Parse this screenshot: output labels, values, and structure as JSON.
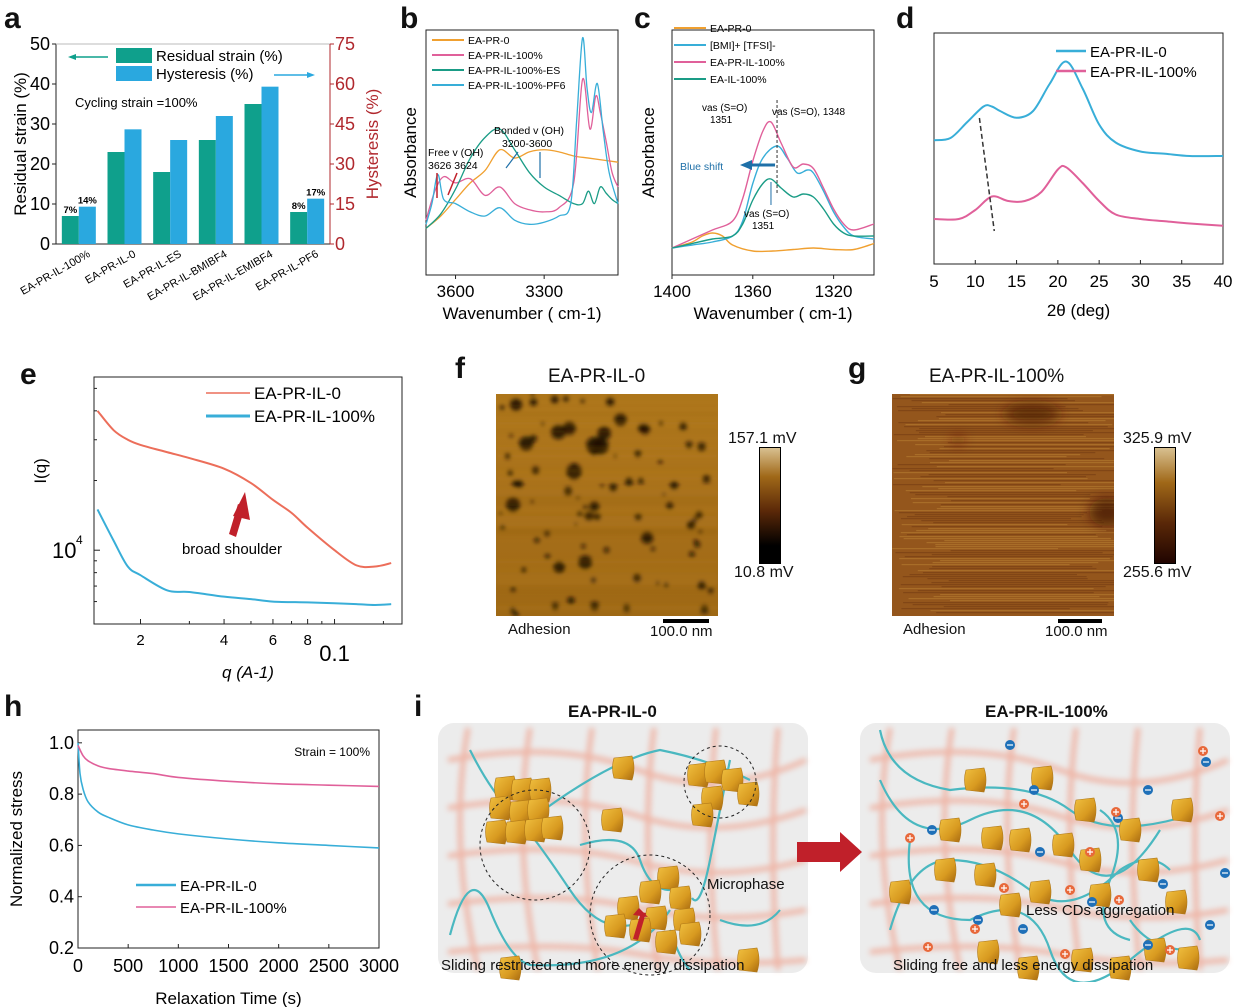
{
  "panels": {
    "a": {
      "label": "a"
    },
    "b": {
      "label": "b"
    },
    "c": {
      "label": "c"
    },
    "d": {
      "label": "d"
    },
    "e": {
      "label": "e"
    },
    "f": {
      "label": "f"
    },
    "g": {
      "label": "g"
    },
    "h": {
      "label": "h"
    },
    "i": {
      "label": "i"
    }
  },
  "colors": {
    "teal": "#0fa08c",
    "blue": "#2aa8df",
    "red_axis": "#b0282e",
    "orange": "#f0a030",
    "pink": "#e0609a",
    "green": "#1a9c86",
    "lightblue": "#38aed8",
    "salmon": "#ec6e5a",
    "dark_red_arrow": "#c0202a"
  },
  "chart_data": [
    {
      "id": "a",
      "type": "bar",
      "title": "",
      "annotation": "Cycling strain =100%",
      "categories": [
        "EA-PR-IL-100%",
        "EA-PR-IL-0",
        "EA-PR-IL-ES",
        "EA-PR-IL-BMIBF4",
        "EA-PR-IL-EMIBF4",
        "EA-PR-IL-PF6"
      ],
      "series": [
        {
          "name": "Residual strain (%)",
          "axis": "left",
          "values": [
            7,
            23,
            18,
            26,
            35,
            8
          ]
        },
        {
          "name": "Hysteresis (%)",
          "axis": "right",
          "values": [
            14,
            43,
            39,
            48,
            59,
            17
          ]
        }
      ],
      "data_labels": [
        {
          "category": "EA-PR-IL-100%",
          "series": "Residual strain (%)",
          "text": "7%"
        },
        {
          "category": "EA-PR-IL-100%",
          "series": "Hysteresis (%)",
          "text": "14%"
        },
        {
          "category": "EA-PR-IL-PF6",
          "series": "Residual strain (%)",
          "text": "8%"
        },
        {
          "category": "EA-PR-IL-PF6",
          "series": "Hysteresis (%)",
          "text": "17%"
        }
      ],
      "ylabel": "Residual strain (%)",
      "ylim": [
        0,
        50
      ],
      "yticks": [
        0,
        10,
        20,
        30,
        40,
        50
      ],
      "y2label": "Hysteresis (%)",
      "y2lim": [
        0,
        75
      ],
      "y2ticks": [
        0,
        15,
        30,
        45,
        60,
        75
      ],
      "legend": "top"
    },
    {
      "id": "b",
      "type": "line",
      "xlabel": "Wavenumber ( cm-1)",
      "ylabel": "Absorbance",
      "xlim": [
        3700,
        3050
      ],
      "xticks": [
        3600,
        3300
      ],
      "series": [
        {
          "name": "EA-PR-0",
          "color": "#f0a030",
          "x": [
            3700,
            3650,
            3600,
            3550,
            3500,
            3450,
            3400,
            3350,
            3300,
            3250,
            3200,
            3150,
            3100,
            3050
          ],
          "y": [
            0.08,
            0.14,
            0.22,
            0.3,
            0.36,
            0.46,
            0.42,
            0.45,
            0.46,
            0.45,
            0.43,
            0.42,
            0.41,
            0.4
          ]
        },
        {
          "name": "EA-PR-IL-100%",
          "color": "#e0609a",
          "x": [
            3700,
            3670,
            3640,
            3600,
            3550,
            3500,
            3450,
            3400,
            3350,
            3300,
            3250,
            3200,
            3170,
            3145,
            3125,
            3110,
            3090,
            3070,
            3050
          ],
          "y": [
            0.12,
            0.26,
            0.33,
            0.3,
            0.32,
            0.24,
            0.28,
            0.2,
            0.17,
            0.16,
            0.18,
            0.3,
            0.8,
            0.56,
            0.72,
            0.64,
            0.5,
            0.35,
            0.28
          ]
        },
        {
          "name": "EA-PR-IL-100%-ES",
          "color": "#1a9c86",
          "x": [
            3700,
            3650,
            3600,
            3550,
            3500,
            3450,
            3400,
            3350,
            3300,
            3250,
            3200,
            3170,
            3150,
            3130,
            3110,
            3090,
            3070,
            3050
          ],
          "y": [
            0.08,
            0.15,
            0.27,
            0.42,
            0.52,
            0.56,
            0.46,
            0.35,
            0.28,
            0.24,
            0.2,
            0.2,
            0.26,
            0.2,
            0.28,
            0.25,
            0.22,
            0.2
          ]
        },
        {
          "name": "EA-PR-IL-100%-PF6",
          "color": "#38aed8",
          "x": [
            3700,
            3680,
            3660,
            3640,
            3600,
            3550,
            3500,
            3450,
            3400,
            3350,
            3300,
            3250,
            3210,
            3190,
            3170,
            3155,
            3140,
            3120,
            3100,
            3080,
            3050
          ],
          "y": [
            0.1,
            0.2,
            0.34,
            0.22,
            0.2,
            0.16,
            0.14,
            0.18,
            0.12,
            0.1,
            0.11,
            0.14,
            0.2,
            0.6,
            1.0,
            0.76,
            0.64,
            0.78,
            0.55,
            0.35,
            0.2
          ]
        }
      ],
      "annotations": [
        "Free v (OH)",
        "3626 3624",
        "Bonded v (OH)",
        "3200-3600"
      ],
      "legend": "top-left"
    },
    {
      "id": "c",
      "type": "line",
      "xlabel": "Wavenumber ( cm-1)",
      "ylabel": "Absorbance",
      "xlim": [
        1400,
        1300
      ],
      "xticks": [
        1400,
        1360,
        1320
      ],
      "series": [
        {
          "name": "EA-PR-0",
          "color": "#f0a030",
          "x": [
            1400,
            1390,
            1385,
            1380,
            1375,
            1370,
            1360,
            1350,
            1340,
            1330,
            1320,
            1310,
            1300
          ],
          "y": [
            0.02,
            0.06,
            0.1,
            0.12,
            0.1,
            0.04,
            0.0,
            0.0,
            0.01,
            0.02,
            0.01,
            0.01,
            0.05
          ]
        },
        {
          "name": "[BMI]+ [TFSI]-",
          "color": "#38aed8",
          "x": [
            1400,
            1390,
            1380,
            1370,
            1365,
            1360,
            1355,
            1348,
            1343,
            1338,
            1333,
            1330,
            1325,
            1320,
            1315,
            1310,
            1300
          ],
          "y": [
            0.02,
            0.04,
            0.06,
            0.1,
            0.2,
            0.45,
            0.62,
            0.7,
            0.62,
            0.52,
            0.54,
            0.52,
            0.4,
            0.26,
            0.16,
            0.1,
            0.08
          ]
        },
        {
          "name": "EA-PR-IL-100%",
          "color": "#e0609a",
          "x": [
            1400,
            1390,
            1380,
            1370,
            1365,
            1360,
            1355,
            1351,
            1346,
            1340,
            1335,
            1330,
            1325,
            1320,
            1315,
            1310,
            1300
          ],
          "y": [
            0.02,
            0.08,
            0.14,
            0.2,
            0.35,
            0.6,
            0.8,
            0.86,
            0.72,
            0.56,
            0.58,
            0.55,
            0.42,
            0.28,
            0.18,
            0.14,
            0.18
          ]
        },
        {
          "name": "EA-IL-100%",
          "color": "#1a9c86",
          "x": [
            1400,
            1390,
            1380,
            1370,
            1365,
            1360,
            1355,
            1351,
            1346,
            1340,
            1335,
            1330,
            1325,
            1320,
            1315,
            1310,
            1300
          ],
          "y": [
            0.02,
            0.05,
            0.08,
            0.1,
            0.18,
            0.34,
            0.45,
            0.48,
            0.42,
            0.36,
            0.38,
            0.36,
            0.28,
            0.18,
            0.12,
            0.1,
            0.1
          ]
        }
      ],
      "annotations": [
        "vas (S=O)",
        "1351",
        "vas (S=O), 1348",
        "Blue shift",
        "vas (S=O)",
        "1351"
      ],
      "legend": "top-left"
    },
    {
      "id": "d",
      "type": "line",
      "xlabel": "2θ (deg)",
      "ylabel": "",
      "xlim": [
        5,
        40
      ],
      "xticks": [
        5,
        10,
        15,
        20,
        25,
        30,
        35,
        40
      ],
      "series": [
        {
          "name": "EA-PR-IL-0",
          "color": "#38aed8",
          "x": [
            5,
            7,
            9,
            11,
            12,
            13,
            15,
            17,
            19,
            21,
            23,
            25,
            27,
            30,
            33,
            36,
            40
          ],
          "y": [
            0.55,
            0.56,
            0.63,
            0.7,
            0.7,
            0.68,
            0.65,
            0.68,
            0.8,
            0.9,
            0.78,
            0.62,
            0.54,
            0.5,
            0.49,
            0.48,
            0.48
          ]
        },
        {
          "name": "EA-PR-IL-100%",
          "color": "#e0609a",
          "x": [
            5,
            8,
            10,
            12,
            14,
            16,
            18,
            20,
            21,
            23,
            25,
            27,
            30,
            33,
            36,
            40
          ],
          "y": [
            0.2,
            0.2,
            0.24,
            0.3,
            0.28,
            0.28,
            0.32,
            0.42,
            0.43,
            0.36,
            0.28,
            0.22,
            0.2,
            0.19,
            0.18,
            0.17
          ]
        }
      ],
      "legend": "top-right"
    },
    {
      "id": "e",
      "type": "line",
      "xlabel": "q (A-1)",
      "ylabel": "I(q)",
      "xscale": "log",
      "yscale": "log",
      "xtick_labels": [
        "2",
        "4",
        "6",
        "8",
        "0.1"
      ],
      "ytick_labels": [
        "10^4"
      ],
      "annotation": "broad shoulder",
      "series": [
        {
          "name": "EA-PR-IL-0",
          "color": "#ec6e5a",
          "x": [
            0.014,
            0.016,
            0.018,
            0.02,
            0.025,
            0.03,
            0.04,
            0.05,
            0.06,
            0.07,
            0.08,
            0.1,
            0.12,
            0.14,
            0.16
          ],
          "y": [
            40000,
            33000,
            30000,
            28500,
            26500,
            25000,
            22500,
            19500,
            16500,
            14500,
            12500,
            10000,
            8600,
            8500,
            8800
          ]
        },
        {
          "name": "EA-PR-IL-100%",
          "color": "#38aed8",
          "x": [
            0.014,
            0.016,
            0.018,
            0.02,
            0.025,
            0.03,
            0.04,
            0.05,
            0.06,
            0.08,
            0.1,
            0.12,
            0.14,
            0.16
          ],
          "y": [
            15000,
            11000,
            8500,
            7800,
            6700,
            6600,
            6300,
            6150,
            6000,
            5950,
            5900,
            5850,
            5800,
            5850
          ]
        }
      ],
      "legend": "top-right"
    },
    {
      "id": "h",
      "type": "line",
      "xlabel": "Relaxation Time (s)",
      "ylabel": "Normalized stress",
      "xlim": [
        0,
        3000
      ],
      "ylim": [
        0.2,
        1.05
      ],
      "xticks": [
        0,
        500,
        1000,
        1500,
        2000,
        2500,
        3000
      ],
      "yticks": [
        0.2,
        0.4,
        0.6,
        0.8,
        1.0
      ],
      "annotation": "Strain = 100%",
      "series": [
        {
          "name": "EA-PR-IL-0",
          "color": "#38aed8",
          "x": [
            0,
            20,
            50,
            100,
            200,
            300,
            500,
            750,
            1000,
            1500,
            2000,
            2500,
            3000
          ],
          "y": [
            1.0,
            0.88,
            0.82,
            0.77,
            0.73,
            0.71,
            0.68,
            0.66,
            0.645,
            0.625,
            0.61,
            0.6,
            0.59
          ]
        },
        {
          "name": "EA-PR-IL-100%",
          "color": "#e0609a",
          "x": [
            0,
            50,
            100,
            200,
            300,
            500,
            750,
            1000,
            1500,
            2000,
            2500,
            3000
          ],
          "y": [
            0.99,
            0.95,
            0.93,
            0.91,
            0.9,
            0.89,
            0.88,
            0.865,
            0.85,
            0.84,
            0.835,
            0.83
          ]
        }
      ],
      "legend": "bottom-left"
    }
  ],
  "afm": {
    "f": {
      "title": "EA-PR-IL-0",
      "max": "157.1 mV",
      "min": "10.8 mV",
      "mode": "Adhesion",
      "scale": "100.0 nm"
    },
    "g": {
      "title": "EA-PR-IL-100%",
      "max": "325.9 mV",
      "min": "255.6 mV",
      "mode": "Adhesion",
      "scale": "100.0 nm"
    }
  },
  "schematic": {
    "left_title": "EA-PR-IL-0",
    "left_caption": "Sliding restricted and more energy dissipation",
    "left_annotation": "Microphase",
    "right_title": "EA-PR-IL-100%",
    "right_caption": "Sliding free and less energy dissipation",
    "right_annotation": "Less CDs aggregation"
  }
}
